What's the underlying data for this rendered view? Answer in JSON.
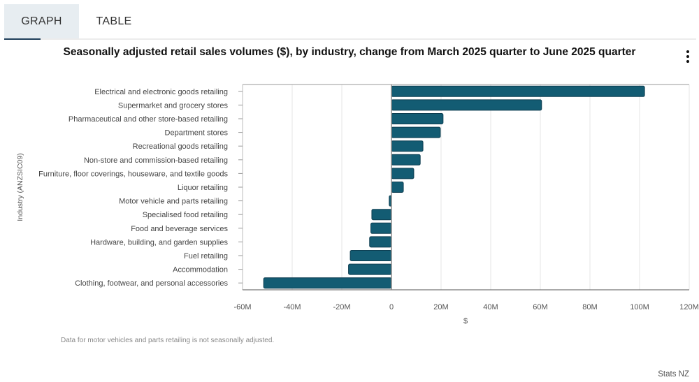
{
  "tabs": [
    {
      "label": "GRAPH",
      "active": true
    },
    {
      "label": "TABLE",
      "active": false
    }
  ],
  "menu_icon": "kebab-vertical-icon",
  "colors": {
    "bar": "#135c73",
    "bar_stroke": "#0d3d50",
    "active_tab_bg": "#e7edf1",
    "active_tab_underline": "#1f3e5a"
  },
  "chart_data": {
    "type": "bar",
    "orientation": "horizontal",
    "title": "Seasonally adjusted retail sales volumes ($), by industry, change from March 2025 quarter to June 2025 quarter",
    "xlabel": "$",
    "ylabel": "Industry (ANZSIC09)",
    "xlim": [
      -60000000,
      120000000
    ],
    "x_ticks": [
      -60000000,
      -40000000,
      -20000000,
      0,
      20000000,
      40000000,
      60000000,
      80000000,
      100000000,
      120000000
    ],
    "x_tick_labels": [
      "-60M",
      "-40M",
      "-20M",
      "0",
      "20M",
      "40M",
      "60M",
      "80M",
      "100M",
      "120M"
    ],
    "grid": "vertical",
    "categories": [
      "Electrical and electronic goods retailing",
      "Supermarket and grocery stores",
      "Pharmaceutical and other store-based retailing",
      "Department stores",
      "Recreational goods retailing",
      "Non-store and commission-based retailing",
      "Furniture, floor coverings, houseware, and textile goods",
      "Liquor retailing",
      "Motor vehicle and parts retailing",
      "Specialised food retailing",
      "Food and beverage services",
      "Hardware, building, and garden supplies",
      "Fuel retailing",
      "Accommodation",
      "Clothing, footwear, and personal accessories"
    ],
    "values": [
      102000000,
      60500000,
      20800000,
      19700000,
      12700000,
      11600000,
      9000000,
      4800000,
      -900000,
      -7900000,
      -8300000,
      -8800000,
      -16600000,
      -17300000,
      -51500000
    ]
  },
  "footnote": "Data for motor vehicles and parts retailing is not seasonally adjusted.",
  "credit": "Stats NZ"
}
